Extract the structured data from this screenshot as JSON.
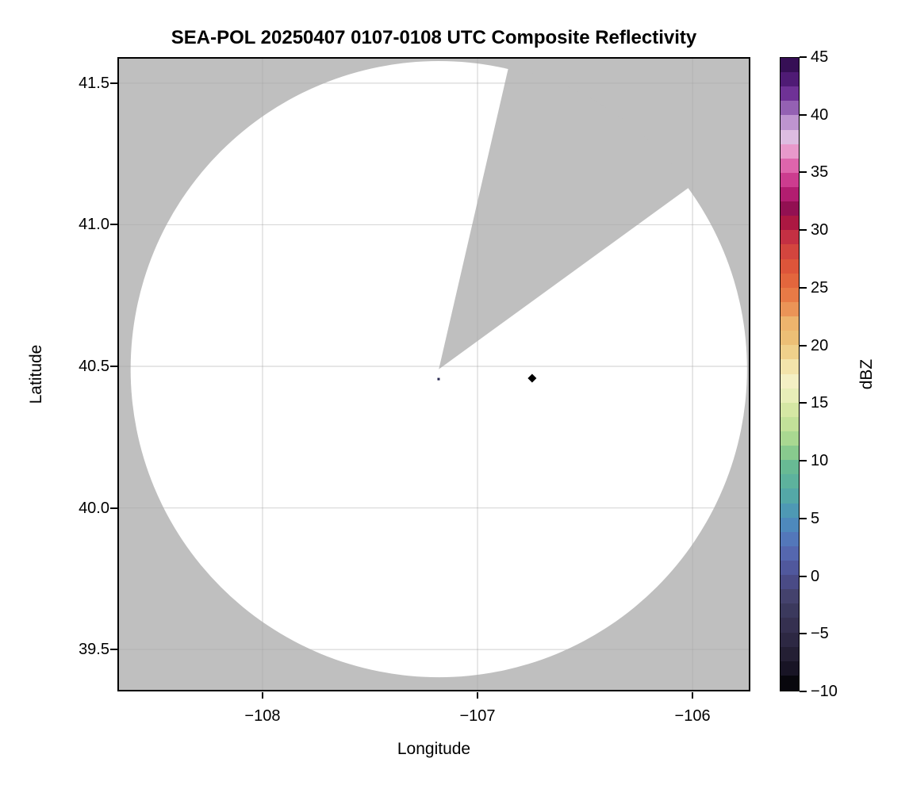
{
  "title": "SEA-POL 20250407 0107-0108 UTC Composite Reflectivity",
  "axes": {
    "x": {
      "label": "Longitude",
      "tick_labels": [
        "−108",
        "−107",
        "−106"
      ]
    },
    "y": {
      "label": "Latitude",
      "tick_labels": [
        "39.5",
        "40.0",
        "40.5",
        "41.0",
        "41.5"
      ]
    }
  },
  "colorbar_label": "dBZ",
  "chart_data": {
    "type": "heatmap",
    "subtype": "radar-composite-reflectivity-ppi",
    "title": "SEA-POL 20250407 0107-0108 UTC Composite Reflectivity",
    "xlabel": "Longitude",
    "ylabel": "Latitude",
    "xlim": [
      -108.675,
      -105.731
    ],
    "ylim": [
      39.352,
      41.592
    ],
    "x_ticks": [
      -108,
      -107,
      -106
    ],
    "y_ticks": [
      39.5,
      40.0,
      40.5,
      41.0,
      41.5
    ],
    "grid": true,
    "grid_color": "#a8a8a8",
    "grid_opacity": 0.45,
    "nodata_color": "#bfbfbf",
    "coverage_color": "#ffffff",
    "spine_color": "#000000",
    "radar": {
      "center_lon": -107.18,
      "center_lat": 40.49,
      "range_deg_lat": 1.088,
      "missing_sector_azimuth_deg": [
        13,
        54
      ]
    },
    "echoes": [
      {
        "lon": -106.746,
        "lat": 40.458,
        "shape": "diamond",
        "color": "#000000",
        "dbz_approx": -10
      },
      {
        "lon": -107.181,
        "lat": 40.455,
        "shape": "dot",
        "color": "#26264f",
        "dbz_approx": -5
      }
    ],
    "colorbar": {
      "label": "dBZ",
      "vmin": -10,
      "vmax": 45,
      "n_bands": 44,
      "ticks": [
        45,
        40,
        35,
        30,
        25,
        20,
        15,
        10,
        5,
        0,
        -5,
        -10
      ],
      "tick_labels": [
        "45",
        "40",
        "35",
        "30",
        "25",
        "20",
        "15",
        "10",
        "5",
        "0",
        "−5",
        "−10"
      ],
      "stops": [
        [
          -10,
          "#000000"
        ],
        [
          -8.5,
          "#141020"
        ],
        [
          -7,
          "#231e33"
        ],
        [
          -5,
          "#322c4a"
        ],
        [
          -3,
          "#3c3a5e"
        ],
        [
          -1.5,
          "#464472"
        ],
        [
          0,
          "#4d5094"
        ],
        [
          2,
          "#5569b1"
        ],
        [
          3.5,
          "#527cbd"
        ],
        [
          5,
          "#4b92bb"
        ],
        [
          7,
          "#55a9a6"
        ],
        [
          8.5,
          "#5fb59a"
        ],
        [
          10,
          "#6fbe90"
        ],
        [
          11,
          "#97d18c"
        ],
        [
          13,
          "#c0e098"
        ],
        [
          15,
          "#dfeaaa"
        ],
        [
          16,
          "#eef0c0"
        ],
        [
          17,
          "#f5f0c4"
        ],
        [
          18.5,
          "#f2e0a2"
        ],
        [
          20,
          "#ecc57b"
        ],
        [
          22,
          "#edb36c"
        ],
        [
          23.5,
          "#ea8a50"
        ],
        [
          25,
          "#e66f3e"
        ],
        [
          27,
          "#dc533a"
        ],
        [
          28.5,
          "#d0403f"
        ],
        [
          30,
          "#bc2445"
        ],
        [
          31,
          "#a31140"
        ],
        [
          32,
          "#8f1054"
        ],
        [
          33.5,
          "#bd2179"
        ],
        [
          35,
          "#d6509f"
        ],
        [
          36,
          "#e272b4"
        ],
        [
          37,
          "#e99fce"
        ],
        [
          38,
          "#dfc0e2"
        ],
        [
          39,
          "#cda4d6"
        ],
        [
          40,
          "#a678c2"
        ],
        [
          42,
          "#6b2d93"
        ],
        [
          43.5,
          "#46156b"
        ],
        [
          45,
          "#2b0a45"
        ]
      ]
    }
  }
}
